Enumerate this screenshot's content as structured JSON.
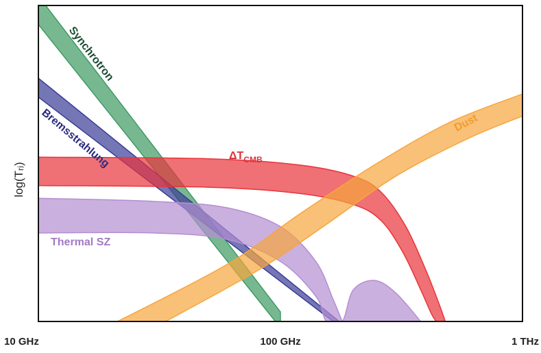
{
  "chart_data": {
    "type": "area",
    "ylabel": "log(Tᵣⱼ)",
    "x_scale": "log",
    "x_ticks": [
      {
        "value": 10,
        "label": "10 GHz"
      },
      {
        "value": 100,
        "label": "100 GHz"
      },
      {
        "value": 1000,
        "label": "1 THz"
      }
    ],
    "xlim": [
      10,
      1000
    ],
    "ylim": [
      0,
      10
    ],
    "y_ticks": "none",
    "grid": false,
    "legend": "none",
    "series": [
      {
        "name": "Synchrotron",
        "color": "#3f9a62",
        "upper": [
          [
            10,
            10.3
          ],
          [
            100,
            0.3
          ]
        ],
        "lower": [
          [
            10,
            9.4
          ],
          [
            100,
            -0.2
          ]
        ]
      },
      {
        "name": "Bremsstrahlung",
        "color": "#3b3c96",
        "upper": [
          [
            10,
            7.7
          ],
          [
            175,
            0
          ]
        ],
        "lower": [
          [
            10,
            7.1
          ],
          [
            165,
            0
          ]
        ]
      },
      {
        "name": "Thermal SZ",
        "color": "#b38ed1",
        "upper": [
          [
            10,
            3.9
          ],
          [
            30,
            3.8
          ],
          [
            60,
            3.6
          ],
          [
            100,
            3.0
          ],
          [
            140,
            1.9
          ],
          [
            165,
            0.7
          ],
          [
            180,
            0
          ]
        ],
        "lower": [
          [
            10,
            2.8
          ],
          [
            30,
            2.8
          ],
          [
            60,
            2.6
          ],
          [
            100,
            1.9
          ],
          [
            140,
            0.8
          ],
          [
            155,
            0
          ],
          [
            180,
            0
          ],
          [
            200,
            1.0
          ],
          [
            245,
            1.3
          ],
          [
            300,
            0.9
          ],
          [
            380,
            0
          ]
        ]
      },
      {
        "name": "ΔT_CMB",
        "name_main": "ΔT",
        "name_sub": "CMB",
        "color": "#e8333a",
        "upper": [
          [
            10,
            5.2
          ],
          [
            50,
            5.15
          ],
          [
            120,
            4.95
          ],
          [
            200,
            4.6
          ],
          [
            260,
            4.1
          ],
          [
            330,
            3.0
          ],
          [
            400,
            1.6
          ],
          [
            450,
            0.6
          ],
          [
            480,
            0
          ]
        ],
        "lower": [
          [
            10,
            4.3
          ],
          [
            50,
            4.25
          ],
          [
            120,
            4.05
          ],
          [
            200,
            3.7
          ],
          [
            260,
            3.2
          ],
          [
            320,
            2.2
          ],
          [
            380,
            1.0
          ],
          [
            420,
            0.25
          ],
          [
            440,
            0
          ]
        ]
      },
      {
        "name": "Dust",
        "color": "#f7a53d",
        "upper": [
          [
            20,
            -0.1
          ],
          [
            60,
            1.8
          ],
          [
            120,
            3.4
          ],
          [
            250,
            5.0
          ],
          [
            500,
            6.3
          ],
          [
            1000,
            7.2
          ]
        ],
        "lower": [
          [
            30,
            -0.2
          ],
          [
            80,
            1.6
          ],
          [
            150,
            3.0
          ],
          [
            300,
            4.6
          ],
          [
            600,
            5.8
          ],
          [
            1000,
            6.5
          ]
        ]
      }
    ]
  }
}
